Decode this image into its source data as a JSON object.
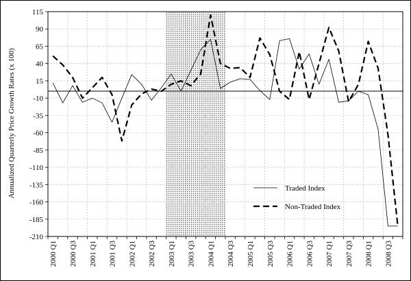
{
  "chart_data": {
    "type": "line",
    "title": "",
    "xlabel": "",
    "ylabel": "Annualized Quarterly Price Growth Rates (x 100)",
    "ylim": [
      -210,
      115
    ],
    "yticks": [
      115,
      90,
      65,
      40,
      15,
      -10,
      -35,
      -60,
      -85,
      -110,
      -135,
      -160,
      -185,
      -210
    ],
    "x": [
      "2000 Q1",
      "2000 Q2",
      "2000 Q3",
      "2000 Q4",
      "2001 Q1",
      "2001 Q2",
      "2001 Q3",
      "2001 Q4",
      "2002 Q1",
      "2002 Q2",
      "2002 Q3",
      "2002 Q4",
      "2003 Q1",
      "2003 Q2",
      "2003 Q3",
      "2003 Q4",
      "2004 Q1",
      "2004 Q2",
      "2004 Q3",
      "2004 Q4",
      "2005 Q1",
      "2005 Q2",
      "2005 Q3",
      "2005 Q4",
      "2006 Q1",
      "2006 Q2",
      "2006 Q3",
      "2006 Q4",
      "2007 Q1",
      "2007 Q2",
      "2007 Q3",
      "2007 Q4",
      "2008 Q1",
      "2008 Q2",
      "2008 Q3",
      "2008 Q4"
    ],
    "xtick_labels": [
      "2000 Q1",
      "2000 Q3",
      "2001 Q1",
      "2001 Q3",
      "2002 Q1",
      "2002 Q3",
      "2003 Q1",
      "2003 Q3",
      "2004 Q1",
      "2004 Q3",
      "2005 Q1",
      "2005 Q3",
      "2006 Q1",
      "2006 Q3",
      "2007 Q1",
      "2007 Q3",
      "2008 Q1",
      "2008 Q3"
    ],
    "shaded_region": {
      "from": "2003 Q1",
      "to": "2004 Q2"
    },
    "reference_line": 0,
    "grid": true,
    "legend_position": "bottom-right inside",
    "series": [
      {
        "name": "Traded Index",
        "style": "solid-thin",
        "color": "#000000",
        "values": [
          12,
          -17,
          8,
          -16,
          -10,
          -17,
          -45,
          -10,
          24,
          10,
          -13,
          5,
          25,
          0,
          30,
          60,
          75,
          4,
          13,
          18,
          17,
          1,
          -12,
          73,
          76,
          32,
          54,
          10,
          46,
          -16,
          -14,
          0,
          -5,
          -55,
          -195,
          -195
        ]
      },
      {
        "name": "Non-Traded Index",
        "style": "dashed-thick",
        "color": "#000000",
        "values": [
          51,
          38,
          20,
          -10,
          5,
          20,
          -5,
          -72,
          -20,
          -4,
          3,
          0,
          10,
          15,
          8,
          25,
          110,
          40,
          33,
          34,
          20,
          77,
          53,
          0,
          -12,
          57,
          -12,
          40,
          92,
          58,
          -15,
          10,
          72,
          33,
          -63,
          -196
        ]
      }
    ]
  }
}
